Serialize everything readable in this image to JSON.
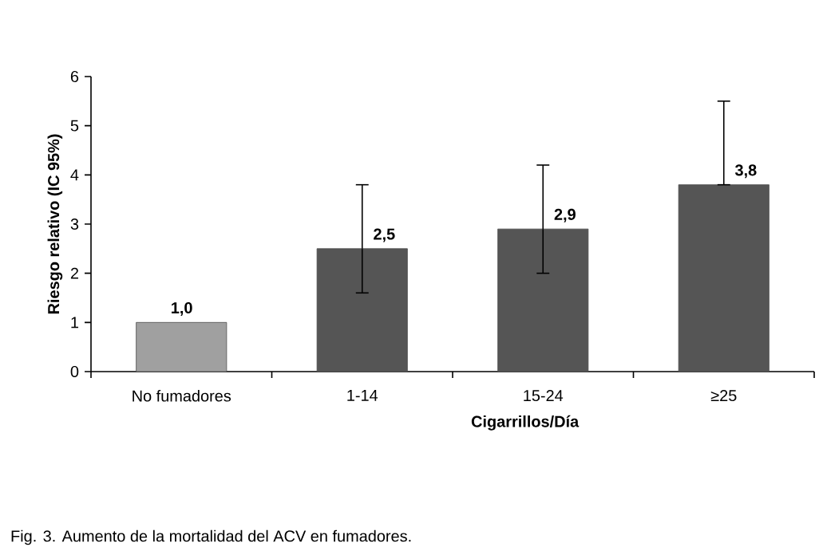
{
  "chart_data": {
    "type": "bar",
    "ylabel": "Riesgo relativo (IC 95%)",
    "xlabel": "Cigarrillos/Día",
    "categories": [
      "No fumadores",
      "1-14",
      "15-24",
      "≥25"
    ],
    "values": [
      1.0,
      2.5,
      2.9,
      3.8
    ],
    "colors": [
      "#a0a0a0",
      "#555555",
      "#555555",
      "#555555"
    ],
    "errors": [
      null,
      [
        1.6,
        3.8
      ],
      [
        2.0,
        4.2
      ],
      [
        3.8,
        5.5
      ]
    ],
    "value_labels": [
      "1,0",
      "2,5",
      "2,9",
      "3,8"
    ],
    "ylim": [
      0,
      6
    ],
    "yticks": [
      0,
      1,
      2,
      3,
      4,
      5,
      6
    ],
    "annotations": [
      "Fig. 3. Aumento de la mortalidad del ACV en fumadores."
    ]
  }
}
